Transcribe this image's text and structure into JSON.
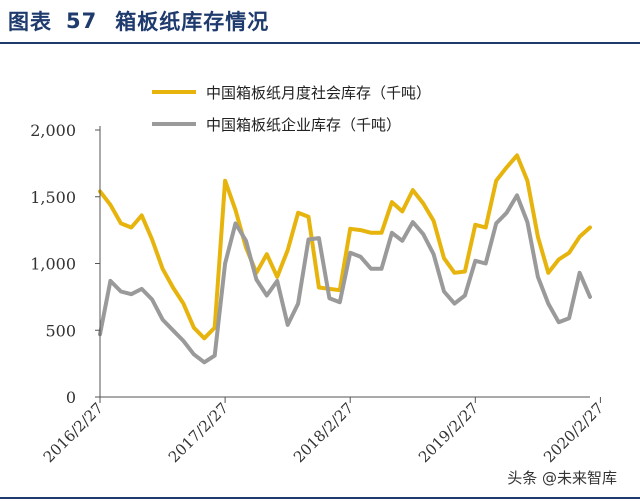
{
  "figure": {
    "label": "图表",
    "number": "57",
    "title": "箱板纸库存情况"
  },
  "watermark": "头条 @未来智库",
  "colors": {
    "series_1": "#e6b40c",
    "series_2": "#9a9a9a",
    "rule": "#1f3b6e",
    "axis": "#555555"
  },
  "chart_data": {
    "type": "line",
    "ylim": [
      0,
      2000
    ],
    "yticks": [
      0,
      500,
      1000,
      1500,
      2000
    ],
    "ytick_labels": [
      "0",
      "500",
      "1,000",
      "1,500",
      "2,000"
    ],
    "xticks": [
      {
        "index": 0,
        "label": "2016/2/27"
      },
      {
        "index": 12,
        "label": "2017/2/27"
      },
      {
        "index": 24,
        "label": "2018/2/27"
      },
      {
        "index": 36,
        "label": "2019/2/27"
      },
      {
        "index": 48,
        "label": "2020/2/27"
      }
    ],
    "legend_position": "top-center",
    "series": [
      {
        "name": "中国箱板纸月度社会库存（千吨）",
        "values": [
          1540,
          1440,
          1300,
          1270,
          1360,
          1180,
          960,
          820,
          700,
          520,
          440,
          520,
          1620,
          1400,
          1120,
          930,
          1070,
          900,
          1100,
          1380,
          1350,
          820,
          810,
          800,
          1260,
          1250,
          1230,
          1230,
          1460,
          1390,
          1550,
          1450,
          1320,
          1040,
          930,
          940,
          1290,
          1270,
          1620,
          1720,
          1810,
          1620,
          1200,
          930,
          1030,
          1080,
          1200,
          1270
        ]
      },
      {
        "name": "中国箱板纸企业库存（千吨）",
        "values": [
          470,
          870,
          790,
          770,
          810,
          730,
          580,
          500,
          420,
          320,
          260,
          310,
          1000,
          1300,
          1170,
          880,
          760,
          870,
          540,
          700,
          1180,
          1190,
          740,
          710,
          1080,
          1050,
          960,
          960,
          1230,
          1170,
          1310,
          1220,
          1070,
          790,
          700,
          760,
          1020,
          1000,
          1300,
          1380,
          1510,
          1310,
          900,
          700,
          560,
          590,
          930,
          750
        ]
      }
    ]
  }
}
